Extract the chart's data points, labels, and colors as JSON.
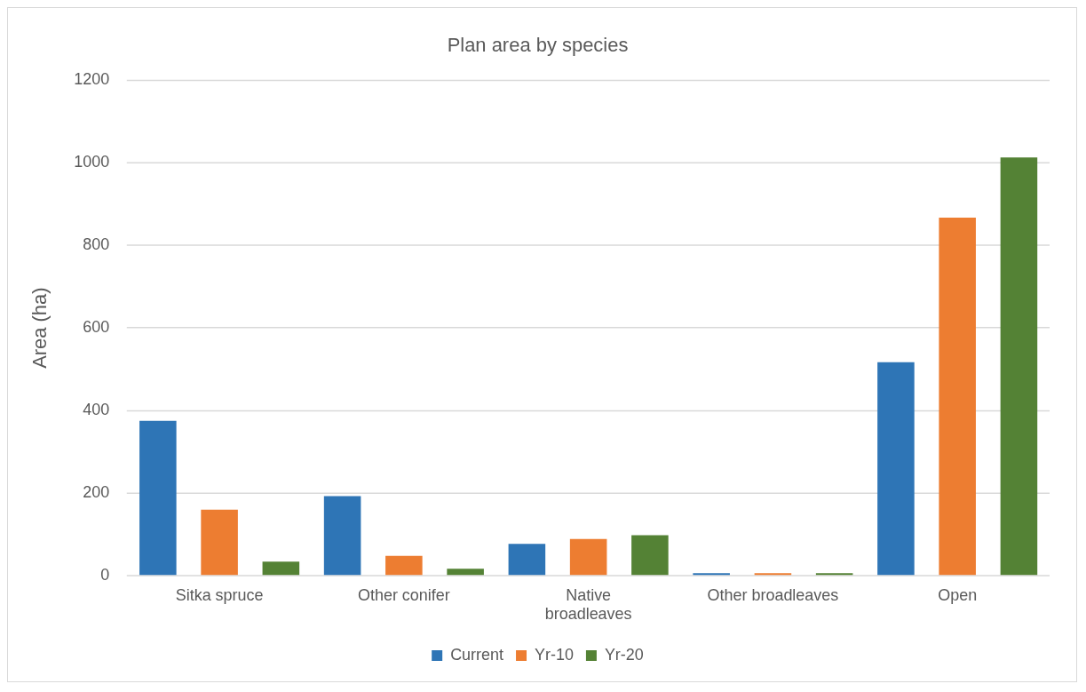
{
  "chart_data": {
    "type": "bar",
    "title": "Plan area by species",
    "ylabel": "Area (ha)",
    "categories": [
      "Sitka spruce",
      "Other conifer",
      "Native broadleaves",
      "Other broadleaves",
      "Open"
    ],
    "series": [
      {
        "name": "Current",
        "color": "#2e75b6",
        "values": [
          375,
          193,
          77,
          6,
          517
        ]
      },
      {
        "name": "Yr-10",
        "color": "#ed7d31",
        "values": [
          160,
          48,
          89,
          6,
          867
        ]
      },
      {
        "name": "Yr-20",
        "color": "#548235",
        "values": [
          34,
          17,
          98,
          6,
          1013
        ]
      }
    ],
    "ylim": [
      0,
      1200
    ],
    "yticks": [
      0,
      200,
      400,
      600,
      800,
      1000,
      1200
    ],
    "grid": "y",
    "legend": "bottom"
  }
}
